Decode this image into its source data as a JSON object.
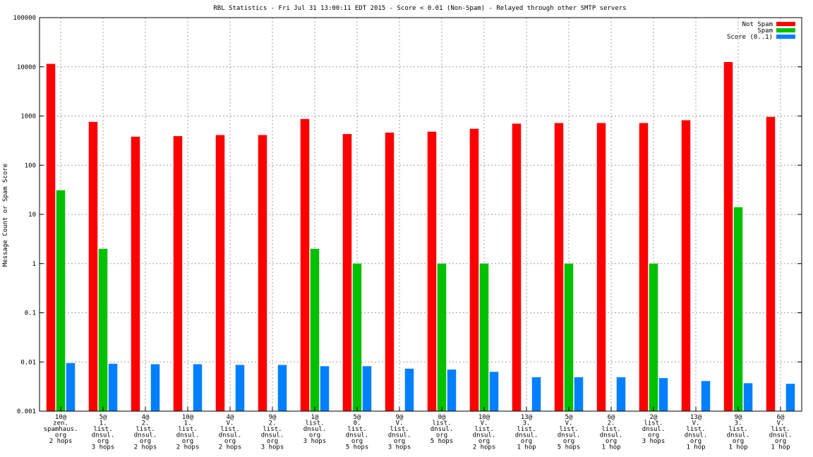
{
  "chart_data": {
    "type": "bar",
    "title": "RBL Statistics - Fri Jul 31 13:00:11 EDT 2015 - Score < 0.01 (Non-Spam) - Relayed through other SMTP servers",
    "xlabel": "",
    "ylabel": "Message Count or Spam Score",
    "y_scale": "log",
    "ylim": [
      0.001,
      100000
    ],
    "yticks": [
      "0.001",
      "0.01",
      "0.1",
      "1",
      "10",
      "100",
      "1000",
      "10000",
      "100000"
    ],
    "grid": true,
    "legend_position": "top-right",
    "categories": [
      [
        "10@",
        "zen.",
        "spamhaus.",
        "org",
        "2 hops"
      ],
      [
        "5@",
        "1.",
        "list.",
        "dnsul.",
        "org",
        "3 hops"
      ],
      [
        "4@",
        "2.",
        "list.",
        "dnsul.",
        "org",
        "2 hops"
      ],
      [
        "10@",
        "1.",
        "list.",
        "dnsul.",
        "org",
        "2 hops"
      ],
      [
        "4@",
        "V.",
        "list.",
        "dnsul.",
        "org",
        "2 hops"
      ],
      [
        "9@",
        "2.",
        "list.",
        "dnsul.",
        "org",
        "3 hops"
      ],
      [
        "1@",
        "list.",
        "dnsul.",
        "org",
        "3 hops"
      ],
      [
        "5@",
        "0.",
        "list.",
        "dnsul.",
        "org",
        "5 hops"
      ],
      [
        "9@",
        "V.",
        "list.",
        "dnsul.",
        "org",
        "3 hops"
      ],
      [
        "0@",
        "list.",
        "dnsul.",
        "org",
        "5 hops"
      ],
      [
        "10@",
        "V.",
        "list.",
        "dnsul.",
        "org",
        "2 hops"
      ],
      [
        "13@",
        "3.",
        "list.",
        "dnsul.",
        "org",
        "1 hop"
      ],
      [
        "5@",
        "V.",
        "list.",
        "dnsul.",
        "org",
        "5 hops"
      ],
      [
        "6@",
        "2.",
        "list.",
        "dnsul.",
        "org",
        "1 hop"
      ],
      [
        "2@",
        "list.",
        "dnsul.",
        "org",
        "3 hops"
      ],
      [
        "13@",
        "V.",
        "list.",
        "dnsul.",
        "org",
        "1 hop"
      ],
      [
        "9@",
        "3.",
        "list.",
        "dnsul.",
        "org",
        "1 hop"
      ],
      [
        "6@",
        "V.",
        "list.",
        "dnsul.",
        "org",
        "1 hop"
      ]
    ],
    "series": [
      {
        "name": "Not Spam",
        "color": "#ff0000",
        "values": [
          11500,
          760,
          380,
          390,
          410,
          410,
          870,
          430,
          460,
          480,
          550,
          700,
          720,
          720,
          720,
          820,
          12500,
          960
        ]
      },
      {
        "name": "Spam",
        "color": "#00c000",
        "values": [
          31,
          2,
          null,
          null,
          null,
          null,
          2,
          1,
          null,
          1,
          1,
          null,
          1,
          null,
          1,
          null,
          14,
          null
        ]
      },
      {
        "name": "Score (0..1)",
        "color": "#0080ff",
        "values": [
          0.0095,
          0.0092,
          0.009,
          0.009,
          0.0087,
          0.0087,
          0.0082,
          0.0082,
          0.0073,
          0.007,
          0.0063,
          0.0049,
          0.0049,
          0.0049,
          0.0047,
          0.0041,
          0.0037,
          0.0036
        ]
      }
    ]
  }
}
